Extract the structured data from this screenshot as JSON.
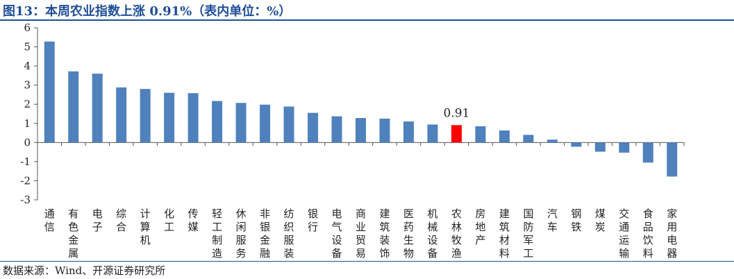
{
  "header": {
    "title": "图13：本周农业指数上涨 0.91%（表内单位：%）"
  },
  "footer": {
    "source": "数据来源：Wind、开源证券研究所"
  },
  "colors": {
    "bar": "#4f81bd",
    "highlight": "#ff0000",
    "title": "#1f4e96"
  },
  "chart_data": {
    "type": "bar",
    "title": "本周农业指数上涨 0.91%",
    "unit": "%",
    "xlabel": "",
    "ylabel": "",
    "ylim": [
      -3,
      6
    ],
    "yticks": [
      6,
      5,
      4,
      3,
      2,
      1,
      0,
      -1,
      -2,
      -3
    ],
    "highlight_category": "农林牧渔",
    "annotation": {
      "category": "农林牧渔",
      "text": "0.91"
    },
    "categories": [
      "通信",
      "有色金属",
      "电子",
      "综合",
      "计算机",
      "化工",
      "传媒",
      "轻工制造",
      "休闲服务",
      "非银金融",
      "纺织服装",
      "银行",
      "电气设备",
      "商业贸易",
      "建筑装饰",
      "医药生物",
      "机械设备",
      "农林牧渔",
      "房地产",
      "建筑材料",
      "国防军工",
      "汽车",
      "钢铁",
      "煤炭",
      "交通运输",
      "食品饮料",
      "家用电器"
    ],
    "values": [
      5.28,
      3.72,
      3.6,
      2.88,
      2.8,
      2.6,
      2.58,
      2.17,
      2.07,
      1.98,
      1.88,
      1.55,
      1.37,
      1.28,
      1.25,
      1.1,
      0.94,
      0.91,
      0.85,
      0.63,
      0.4,
      0.15,
      -0.22,
      -0.48,
      -0.53,
      -1.05,
      -1.78
    ]
  }
}
